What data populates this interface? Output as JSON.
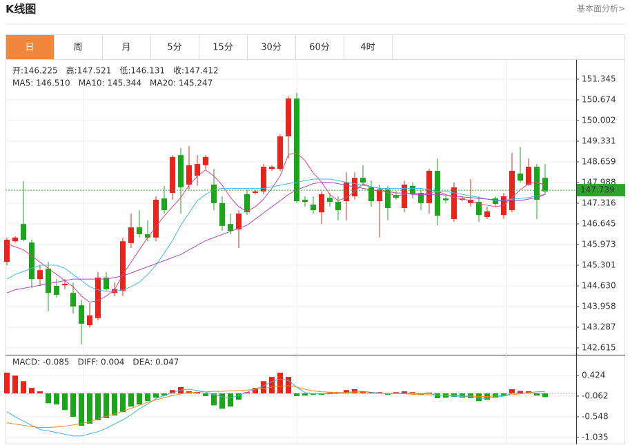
{
  "header": {
    "title": "K线图",
    "link": "基本面分析>"
  },
  "tabs": [
    "日",
    "周",
    "月",
    "5分",
    "15分",
    "30分",
    "60分",
    "4时"
  ],
  "active_tab": 0,
  "info": {
    "ohlc": [
      {
        "label": "开:",
        "value": "146.225"
      },
      {
        "label": "高:",
        "value": "147.521"
      },
      {
        "label": "低:",
        "value": "146.131"
      },
      {
        "label": "收:",
        "value": "147.412"
      }
    ],
    "value_color": "#e8251d"
  },
  "chart_data": [
    {
      "type": "candlestick",
      "open": [
        145.41,
        146.08,
        146.64,
        146.04,
        144.85,
        145.19,
        144.63,
        144.65,
        144.4,
        144.0,
        143.35,
        143.58,
        144.9,
        144.4,
        144.47,
        146.02,
        146.53,
        146.31,
        146.2,
        147.47,
        147.65,
        148.88,
        147.92,
        148.21,
        148.55,
        147.92,
        147.32,
        146.64,
        146.46,
        147.61,
        147.65,
        147.7,
        148.43,
        148.43,
        149.49,
        150.72,
        147.43,
        147.27,
        147.02,
        147.49,
        147.36,
        147.38,
        147.54,
        148.14,
        147.83,
        147.38,
        147.76,
        147.58,
        147.16,
        147.88,
        147.65,
        147.32,
        148.37,
        147.47,
        146.8,
        147.43,
        147.32,
        147.36,
        146.87,
        147.47,
        146.93,
        147.09,
        148.28,
        147.92,
        148.5,
        148.14
      ],
      "high": [
        146.2,
        146.24,
        148.03,
        146.13,
        145.3,
        145.41,
        144.85,
        144.85,
        144.74,
        144.18,
        144.07,
        145.08,
        145.08,
        144.74,
        146.2,
        146.98,
        147.09,
        146.76,
        147.54,
        147.88,
        148.88,
        149.11,
        149.17,
        148.88,
        148.88,
        148.43,
        147.54,
        146.98,
        147.09,
        147.76,
        147.76,
        148.59,
        148.55,
        149.55,
        150.79,
        150.9,
        147.54,
        147.54,
        147.7,
        147.65,
        147.54,
        148.32,
        148.32,
        148.55,
        148.05,
        147.92,
        147.88,
        147.7,
        148.05,
        147.99,
        147.76,
        148.43,
        148.77,
        147.54,
        147.99,
        147.54,
        148.1,
        147.54,
        147.2,
        147.54,
        147.65,
        148.95,
        149.15,
        148.77,
        148.59,
        148.59
      ],
      "low": [
        145.3,
        146.04,
        146.08,
        144.56,
        144.63,
        143.8,
        144.25,
        144.52,
        143.73,
        142.72,
        143.28,
        143.51,
        144.47,
        144.29,
        144.29,
        145.86,
        146.2,
        146.08,
        146.08,
        146.98,
        147.43,
        146.98,
        147.76,
        147.88,
        148.43,
        147.09,
        146.42,
        146.31,
        145.86,
        146.93,
        147.61,
        147.61,
        148.37,
        148.37,
        148.77,
        147.32,
        147.2,
        146.98,
        146.64,
        147.2,
        146.76,
        146.76,
        147.43,
        147.88,
        147.2,
        146.2,
        146.76,
        147.43,
        147.02,
        147.47,
        147.09,
        146.98,
        146.6,
        147.32,
        146.71,
        147.38,
        147.2,
        146.71,
        146.8,
        147.2,
        146.8,
        147.02,
        147.99,
        147.88,
        146.8,
        147.61
      ],
      "close": [
        146.13,
        146.2,
        146.13,
        144.85,
        145.14,
        144.4,
        144.34,
        144.7,
        143.96,
        143.4,
        143.67,
        144.9,
        144.52,
        144.52,
        146.08,
        146.53,
        146.31,
        146.2,
        147.43,
        147.09,
        148.82,
        147.83,
        148.55,
        148.59,
        148.82,
        147.32,
        146.58,
        146.42,
        146.98,
        147.02,
        147.7,
        148.5,
        148.5,
        149.49,
        150.72,
        147.38,
        147.36,
        147.09,
        147.61,
        147.36,
        147.09,
        147.99,
        148.14,
        147.99,
        147.38,
        147.76,
        147.16,
        147.49,
        147.92,
        147.61,
        147.32,
        148.37,
        146.91,
        147.41,
        147.83,
        147.47,
        147.43,
        146.93,
        147.05,
        147.29,
        147.54,
        148.37,
        148.05,
        148.5,
        147.43,
        147.7
      ],
      "up_color": "#e8251d",
      "down_color": "#1aa51a",
      "series": [
        {
          "label": "MA5: 146.510",
          "color": "#e2457c",
          "values": [
            146.0,
            145.9,
            145.8,
            145.6,
            145.4,
            145.2,
            145.0,
            144.8,
            144.6,
            144.3,
            144.1,
            144.15,
            144.3,
            144.5,
            145.0,
            145.4,
            145.8,
            146.2,
            146.55,
            146.9,
            147.2,
            147.5,
            147.9,
            148.2,
            148.4,
            148.2,
            147.9,
            147.5,
            147.2,
            147.05,
            147.2,
            147.45,
            147.8,
            148.2,
            148.9,
            148.95,
            148.7,
            148.3,
            148.0,
            147.6,
            147.4,
            147.5,
            147.7,
            147.95,
            147.85,
            147.8,
            147.65,
            147.55,
            147.6,
            147.65,
            147.6,
            147.65,
            147.7,
            147.6,
            147.5,
            147.45,
            147.4,
            147.3,
            147.25,
            147.2,
            147.25,
            147.5,
            147.75,
            147.95,
            148.0,
            147.9
          ]
        },
        {
          "label": "MA10: 145.344",
          "color": "#3dbbe0",
          "values": [
            144.85,
            145.0,
            145.1,
            145.2,
            145.3,
            145.3,
            145.3,
            145.2,
            145.0,
            144.8,
            144.6,
            144.5,
            144.45,
            144.45,
            144.5,
            144.6,
            144.75,
            145.0,
            145.3,
            145.7,
            146.1,
            146.6,
            147.0,
            147.4,
            147.6,
            147.75,
            147.8,
            147.8,
            147.8,
            147.8,
            147.8,
            147.8,
            147.85,
            147.9,
            147.95,
            148.0,
            148.05,
            148.1,
            148.1,
            148.1,
            148.05,
            148.0,
            147.95,
            147.9,
            147.85,
            147.8,
            147.8,
            147.8,
            147.8,
            147.8,
            147.8,
            147.75,
            147.7,
            147.7,
            147.65,
            147.6,
            147.55,
            147.5,
            147.45,
            147.4,
            147.4,
            147.45,
            147.47,
            147.5,
            147.55,
            147.6
          ]
        },
        {
          "label": "MA20: 145.247",
          "color": "#a84ab8",
          "values": [
            144.4,
            144.5,
            144.55,
            144.6,
            144.65,
            144.7,
            144.75,
            144.8,
            144.85,
            144.85,
            144.85,
            144.85,
            144.85,
            144.9,
            144.95,
            145.05,
            145.15,
            145.25,
            145.35,
            145.45,
            145.55,
            145.65,
            145.8,
            145.95,
            146.1,
            146.2,
            146.3,
            146.4,
            146.5,
            146.6,
            146.8,
            147.0,
            147.2,
            147.4,
            147.6,
            147.75,
            147.85,
            147.95,
            148.0,
            148.0,
            147.95,
            147.9,
            147.85,
            147.8,
            147.75,
            147.7,
            147.7,
            147.65,
            147.65,
            147.6,
            147.6,
            147.6,
            147.6,
            147.58,
            147.55,
            147.52,
            147.5,
            147.47,
            147.45,
            147.43,
            147.4,
            147.4,
            147.4,
            147.45,
            147.5,
            147.6
          ]
        }
      ],
      "last_price": 147.739,
      "last_price_color": "#2aa52a",
      "ylim": [
        142.391,
        151.972
      ],
      "yticks": [
        142.615,
        143.287,
        143.958,
        {
          "value": 144.63,
          "label": "144.630"
        },
        145.301,
        145.973,
        146.645,
        147.316,
        147.988,
        148.659,
        149.331,
        150.002,
        150.674,
        151.345
      ],
      "grid": true
    },
    {
      "type": "macd",
      "label": "MACD: -0.085",
      "label_color": "#1aa51a",
      "values": [
        0.49,
        0.42,
        0.29,
        0.13,
        0.05,
        -0.23,
        -0.26,
        -0.39,
        -0.55,
        -0.76,
        -0.71,
        -0.63,
        -0.58,
        -0.52,
        -0.44,
        -0.31,
        -0.26,
        -0.18,
        -0.1,
        -0.05,
        0.08,
        0.15,
        0.05,
        0.03,
        -0.06,
        -0.28,
        -0.36,
        -0.31,
        -0.15,
        0.03,
        0.13,
        0.29,
        0.39,
        0.49,
        0.39,
        -0.06,
        -0.05,
        -0.03,
        -0.03,
        0.02,
        0.03,
        0.08,
        0.1,
        0.05,
        0.03,
        0.03,
        -0.03,
        0.03,
        0.05,
        0.03,
        -0.03,
        0.02,
        -0.11,
        -0.1,
        -0.08,
        -0.1,
        -0.11,
        -0.18,
        -0.15,
        -0.1,
        -0.06,
        0.1,
        0.06,
        0.05,
        -0.05,
        -0.085
      ],
      "up_color": "#e8251d",
      "down_color": "#1aa51a",
      "series": [
        {
          "label": "DIFF: 0.004",
          "color": "#39b3e6",
          "values": [
            -0.43,
            -0.55,
            -0.65,
            -0.75,
            -0.85,
            -0.88,
            -0.92,
            -0.96,
            -1.0,
            -1.0,
            -0.95,
            -0.9,
            -0.82,
            -0.72,
            -0.62,
            -0.5,
            -0.36,
            -0.25,
            -0.12,
            -0.05,
            0.02,
            0.08,
            0.1,
            0.07,
            0.03,
            -0.02,
            -0.08,
            -0.1,
            -0.05,
            0.03,
            0.1,
            0.18,
            0.28,
            0.34,
            0.3,
            0.15,
            0.02,
            -0.01,
            -0.01,
            -0.01,
            0.0,
            0.02,
            0.05,
            0.05,
            0.03,
            0.01,
            -0.01,
            0.0,
            0.01,
            0.0,
            -0.01,
            0.0,
            -0.04,
            -0.05,
            -0.06,
            -0.07,
            -0.08,
            -0.11,
            -0.11,
            -0.09,
            -0.06,
            0.0,
            0.01,
            0.01,
            0.005,
            0.004
          ]
        },
        {
          "label": "DEA: 0.047",
          "color": "#f08a24",
          "values": [
            -0.69,
            -0.72,
            -0.75,
            -0.78,
            -0.8,
            -0.8,
            -0.79,
            -0.77,
            -0.74,
            -0.71,
            -0.66,
            -0.6,
            -0.54,
            -0.48,
            -0.42,
            -0.35,
            -0.28,
            -0.21,
            -0.15,
            -0.1,
            -0.05,
            -0.01,
            0.02,
            0.03,
            0.04,
            0.05,
            0.05,
            0.06,
            0.07,
            0.08,
            0.1,
            0.12,
            0.15,
            0.17,
            0.18,
            0.15,
            0.1,
            0.06,
            0.04,
            0.03,
            0.02,
            0.02,
            0.02,
            0.02,
            0.01,
            0.0,
            0.0,
            0.0,
            -0.01,
            -0.02,
            -0.03,
            -0.03,
            -0.04,
            -0.05,
            -0.05,
            -0.06,
            -0.06,
            -0.07,
            -0.07,
            -0.06,
            -0.05,
            -0.03,
            -0.01,
            0.02,
            0.04,
            0.047
          ]
        }
      ],
      "ylim": [
        -1.197,
        0.878
      ],
      "yticks": [
        0.424,
        -0.062,
        -0.548,
        -1.035
      ],
      "grid": true
    }
  ]
}
